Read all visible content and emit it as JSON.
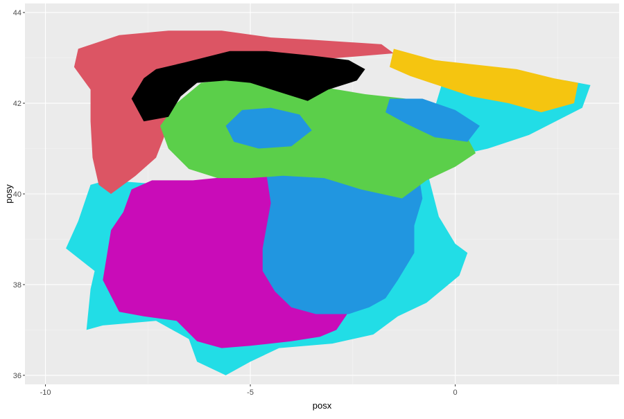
{
  "chart_data": {
    "type": "map",
    "xlabel": "posx",
    "ylabel": "posy",
    "xlim": [
      -10.5,
      4.0
    ],
    "ylim": [
      35.8,
      44.2
    ],
    "x_ticks": [
      -10,
      -5,
      0
    ],
    "x_tick_labels": [
      "-10",
      "-5",
      "0"
    ],
    "y_ticks": [
      36,
      38,
      40,
      42,
      44
    ],
    "y_tick_labels": [
      "36",
      "38",
      "40",
      "42",
      "44"
    ],
    "grid": true,
    "panel_background": "#ebebeb",
    "legend": "none",
    "colors": {
      "coastal_cyan": "#22dde6",
      "northwest_red": "#dc5564",
      "southwest_magenta": "#c90cb8",
      "central_blue": "#2196e0",
      "northern_green": "#5bcf4a",
      "mountain_black": "#000000",
      "northeast_yellow": "#f5c510"
    },
    "regions": [
      {
        "name": "coastal",
        "color_key": "coastal_cyan",
        "outline": [
          [
            -9.5,
            38.8
          ],
          [
            -9.2,
            39.4
          ],
          [
            -8.9,
            40.2
          ],
          [
            -8.5,
            40.3
          ],
          [
            -7.0,
            40.2
          ],
          [
            -5.0,
            40.1
          ],
          [
            -3.0,
            40.0
          ],
          [
            -0.9,
            40.7
          ],
          [
            0.3,
            40.9
          ],
          [
            0.8,
            41.0
          ],
          [
            1.8,
            41.3
          ],
          [
            3.1,
            41.9
          ],
          [
            3.3,
            42.4
          ],
          [
            2.7,
            42.5
          ],
          [
            1.0,
            42.4
          ],
          [
            0.2,
            42.6
          ],
          [
            -0.3,
            42.5
          ],
          [
            -0.6,
            41.6
          ],
          [
            -0.8,
            40.9
          ],
          [
            -0.4,
            39.5
          ],
          [
            0.0,
            38.9
          ],
          [
            0.3,
            38.7
          ],
          [
            0.1,
            38.2
          ],
          [
            -0.7,
            37.6
          ],
          [
            -1.4,
            37.3
          ],
          [
            -2.0,
            36.9
          ],
          [
            -3.0,
            36.7
          ],
          [
            -4.3,
            36.6
          ],
          [
            -5.0,
            36.3
          ],
          [
            -5.6,
            36.0
          ],
          [
            -6.3,
            36.3
          ],
          [
            -6.5,
            36.8
          ],
          [
            -7.3,
            37.2
          ],
          [
            -8.6,
            37.1
          ],
          [
            -9.0,
            37.0
          ],
          [
            -8.9,
            37.9
          ],
          [
            -8.8,
            38.3
          ]
        ]
      },
      {
        "name": "northwest",
        "color_key": "northwest_red",
        "outline": [
          [
            -9.2,
            43.2
          ],
          [
            -8.2,
            43.5
          ],
          [
            -7.0,
            43.6
          ],
          [
            -5.7,
            43.6
          ],
          [
            -4.5,
            43.45
          ],
          [
            -3.5,
            43.4
          ],
          [
            -1.8,
            43.3
          ],
          [
            -1.5,
            43.1
          ],
          [
            -3.5,
            42.95
          ],
          [
            -5.5,
            42.7
          ],
          [
            -6.8,
            42.3
          ],
          [
            -7.0,
            41.5
          ],
          [
            -7.3,
            40.8
          ],
          [
            -7.8,
            40.4
          ],
          [
            -8.4,
            40.0
          ],
          [
            -8.7,
            40.2
          ],
          [
            -8.85,
            40.8
          ],
          [
            -8.9,
            41.6
          ],
          [
            -8.9,
            42.3
          ],
          [
            -9.3,
            42.8
          ]
        ]
      },
      {
        "name": "southwest",
        "color_key": "southwest_magenta",
        "outline": [
          [
            -8.6,
            38.1
          ],
          [
            -8.4,
            39.2
          ],
          [
            -8.1,
            39.6
          ],
          [
            -7.9,
            40.1
          ],
          [
            -7.4,
            40.3
          ],
          [
            -6.4,
            40.3
          ],
          [
            -5.3,
            40.4
          ],
          [
            -4.5,
            40.4
          ],
          [
            -4.3,
            39.8
          ],
          [
            -4.6,
            39.2
          ],
          [
            -4.2,
            38.6
          ],
          [
            -3.2,
            38.6
          ],
          [
            -2.0,
            38.5
          ],
          [
            -1.5,
            38.2
          ],
          [
            -1.6,
            37.9
          ],
          [
            -2.2,
            37.6
          ],
          [
            -2.6,
            37.4
          ],
          [
            -2.9,
            37.0
          ],
          [
            -3.3,
            36.85
          ],
          [
            -4.0,
            36.75
          ],
          [
            -5.0,
            36.65
          ],
          [
            -5.7,
            36.6
          ],
          [
            -6.3,
            36.75
          ],
          [
            -6.8,
            37.2
          ],
          [
            -7.6,
            37.3
          ],
          [
            -8.2,
            37.4
          ]
        ]
      },
      {
        "name": "central",
        "color_key": "central_blue",
        "outline": [
          [
            -4.6,
            40.4
          ],
          [
            -4.2,
            40.5
          ],
          [
            -3.5,
            40.7
          ],
          [
            -2.5,
            40.9
          ],
          [
            -1.5,
            40.8
          ],
          [
            -0.9,
            40.5
          ],
          [
            -0.8,
            39.9
          ],
          [
            -1.0,
            39.3
          ],
          [
            -1.0,
            38.7
          ],
          [
            -1.4,
            38.1
          ],
          [
            -1.7,
            37.7
          ],
          [
            -2.1,
            37.5
          ],
          [
            -2.6,
            37.35
          ],
          [
            -3.4,
            37.35
          ],
          [
            -4.0,
            37.5
          ],
          [
            -4.4,
            37.85
          ],
          [
            -4.7,
            38.3
          ],
          [
            -4.7,
            38.8
          ],
          [
            -4.6,
            39.3
          ],
          [
            -4.5,
            39.8
          ]
        ]
      },
      {
        "name": "northern",
        "color_key": "northern_green",
        "outline": [
          [
            -7.2,
            41.5
          ],
          [
            -6.8,
            42.0
          ],
          [
            -6.2,
            42.45
          ],
          [
            -5.3,
            42.55
          ],
          [
            -4.2,
            42.4
          ],
          [
            -3.2,
            42.35
          ],
          [
            -2.2,
            42.2
          ],
          [
            -1.2,
            42.1
          ],
          [
            -0.4,
            41.9
          ],
          [
            0.2,
            41.4
          ],
          [
            0.5,
            40.9
          ],
          [
            0.0,
            40.6
          ],
          [
            -0.7,
            40.3
          ],
          [
            -1.3,
            39.9
          ],
          [
            -2.3,
            40.1
          ],
          [
            -3.2,
            40.35
          ],
          [
            -4.2,
            40.4
          ],
          [
            -5.0,
            40.35
          ],
          [
            -5.8,
            40.35
          ],
          [
            -6.5,
            40.55
          ],
          [
            -7.0,
            41.0
          ]
        ]
      },
      {
        "name": "central-north-blue",
        "color_key": "central_blue",
        "outline": [
          [
            -5.6,
            41.5
          ],
          [
            -5.2,
            41.85
          ],
          [
            -4.5,
            41.9
          ],
          [
            -3.8,
            41.75
          ],
          [
            -3.5,
            41.4
          ],
          [
            -4.0,
            41.05
          ],
          [
            -4.8,
            41.0
          ],
          [
            -5.4,
            41.15
          ]
        ]
      },
      {
        "name": "ebro-blue",
        "color_key": "central_blue",
        "outline": [
          [
            -1.6,
            42.1
          ],
          [
            -0.8,
            42.1
          ],
          [
            0.0,
            41.85
          ],
          [
            0.6,
            41.5
          ],
          [
            0.3,
            41.15
          ],
          [
            -0.5,
            41.25
          ],
          [
            -1.2,
            41.55
          ],
          [
            -1.7,
            41.8
          ]
        ]
      },
      {
        "name": "mountains",
        "color_key": "mountain_black",
        "outline": [
          [
            -7.9,
            42.1
          ],
          [
            -7.6,
            42.55
          ],
          [
            -7.3,
            42.75
          ],
          [
            -6.6,
            42.9
          ],
          [
            -5.5,
            43.15
          ],
          [
            -4.6,
            43.15
          ],
          [
            -3.5,
            43.05
          ],
          [
            -2.6,
            42.95
          ],
          [
            -2.2,
            42.75
          ],
          [
            -2.4,
            42.5
          ],
          [
            -3.1,
            42.3
          ],
          [
            -3.6,
            42.05
          ],
          [
            -4.3,
            42.25
          ],
          [
            -5.0,
            42.45
          ],
          [
            -5.6,
            42.5
          ],
          [
            -6.3,
            42.45
          ],
          [
            -6.7,
            42.15
          ],
          [
            -7.0,
            41.7
          ],
          [
            -7.6,
            41.6
          ]
        ]
      },
      {
        "name": "northeast",
        "color_key": "northeast_yellow",
        "outline": [
          [
            -1.5,
            43.2
          ],
          [
            -0.5,
            42.95
          ],
          [
            0.5,
            42.85
          ],
          [
            1.5,
            42.75
          ],
          [
            2.4,
            42.55
          ],
          [
            3.0,
            42.45
          ],
          [
            2.9,
            42.0
          ],
          [
            2.1,
            41.8
          ],
          [
            1.3,
            42.0
          ],
          [
            0.4,
            42.15
          ],
          [
            -0.6,
            42.45
          ],
          [
            -1.1,
            42.6
          ],
          [
            -1.6,
            42.8
          ]
        ]
      }
    ]
  }
}
